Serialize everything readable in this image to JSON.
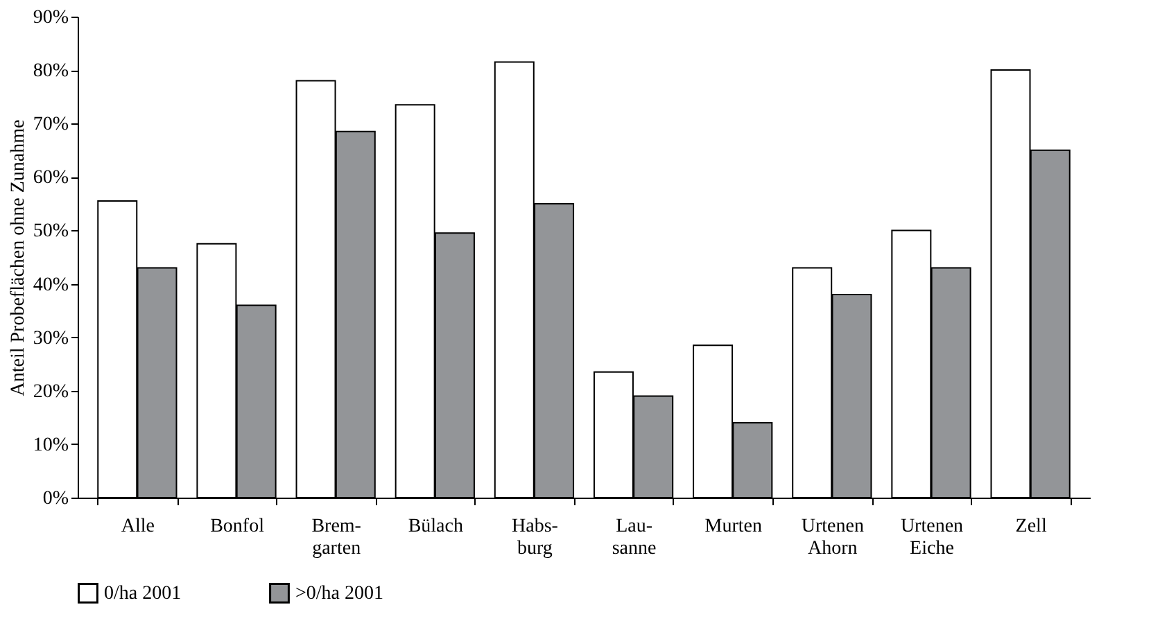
{
  "chart_data": {
    "type": "bar",
    "ylabel": "Anteil Probeflächen ohne Zunahme",
    "categories": [
      "Alle",
      "Bonfol",
      "Brem-\ngarten",
      "Bülach",
      "Habs-\nburg",
      "Lau-\nsanne",
      "Murten",
      "Urtenen\nAhorn",
      "Urtenen\nEiche",
      "Zell"
    ],
    "series": [
      {
        "name": "0/ha 2001",
        "color": "#ffffff",
        "values": [
          55.5,
          47.5,
          78,
          73.5,
          81.5,
          23.5,
          28.5,
          43,
          50,
          80
        ]
      },
      {
        "name": ">0/ha 2001",
        "color": "#939598",
        "values": [
          43,
          36,
          68.5,
          49.5,
          55,
          19,
          14,
          38,
          43,
          65
        ]
      }
    ],
    "ylim": [
      0,
      90
    ],
    "yticks": [
      {
        "value": 0,
        "label": "0%"
      },
      {
        "value": 10,
        "label": "10%"
      },
      {
        "value": 20,
        "label": "20%"
      },
      {
        "value": 30,
        "label": "30%"
      },
      {
        "value": 40,
        "label": "40%"
      },
      {
        "value": 50,
        "label": "50%"
      },
      {
        "value": 60,
        "label": "60%"
      },
      {
        "value": 70,
        "label": "70%"
      },
      {
        "value": 80,
        "label": "80%"
      },
      {
        "value": 90,
        "label": "90%"
      }
    ],
    "grid": false,
    "legend": "bottom"
  }
}
